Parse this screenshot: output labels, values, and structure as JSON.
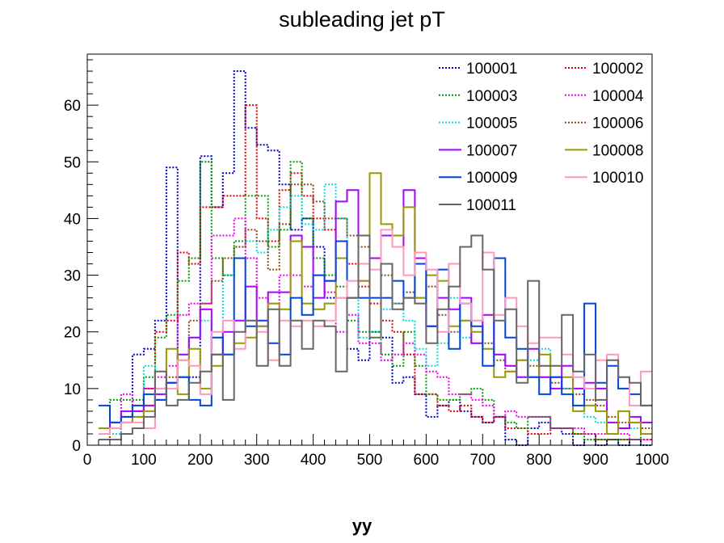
{
  "chart_data": {
    "type": "histogram",
    "title": "subleading jet pT",
    "xlabel": "yy",
    "ylabel": "",
    "xlim": [
      0,
      1000
    ],
    "ylim": [
      0,
      69
    ],
    "bin_width": 20,
    "x_start": 20,
    "xticks": [
      0,
      100,
      200,
      300,
      400,
      500,
      600,
      700,
      800,
      900,
      1000
    ],
    "yticks": [
      0,
      10,
      20,
      30,
      40,
      50,
      60
    ],
    "grid": false,
    "legend_placement": "top-right",
    "legend_columns": 2,
    "series": [
      {
        "name": "100001",
        "color": "#0000cc",
        "dash": true,
        "values": [
          1,
          1,
          5,
          16,
          17,
          22,
          49,
          12,
          12,
          51,
          42,
          48,
          66,
          56,
          53,
          52,
          46,
          38,
          40,
          35,
          26,
          26,
          17,
          15,
          20,
          19,
          11,
          12,
          9,
          5,
          7,
          8,
          6,
          5,
          4,
          5,
          1,
          0,
          3,
          4,
          3,
          2,
          0,
          1,
          0,
          1,
          0,
          1,
          0
        ]
      },
      {
        "name": "100002",
        "color": "#dd0000",
        "dash": true,
        "values": [
          1,
          2,
          4,
          6,
          10,
          20,
          22,
          34,
          32,
          42,
          42,
          44,
          44,
          60,
          40,
          36,
          45,
          48,
          44,
          40,
          38,
          36,
          32,
          28,
          25,
          22,
          20,
          16,
          9,
          9,
          7,
          6,
          7,
          5,
          4,
          5,
          3,
          3,
          2,
          2,
          3,
          3,
          2,
          2,
          1,
          1,
          1,
          1,
          1
        ]
      },
      {
        "name": "100003",
        "color": "#009900",
        "dash": true,
        "values": [
          2,
          8,
          8,
          8,
          12,
          19,
          23,
          29,
          33,
          50,
          33,
          30,
          36,
          44,
          44,
          35,
          38,
          50,
          40,
          33,
          30,
          28,
          22,
          20,
          20,
          16,
          14,
          20,
          14,
          9,
          8,
          8,
          9,
          10,
          8,
          5,
          4,
          3,
          5,
          5,
          3,
          3,
          2,
          1,
          1,
          1,
          1,
          1,
          2
        ]
      },
      {
        "name": "100004",
        "color": "#ee00ee",
        "dash": true,
        "values": [
          3,
          4,
          9,
          7,
          10,
          12,
          14,
          23,
          25,
          25,
          37,
          37,
          40,
          33,
          26,
          25,
          30,
          30,
          28,
          30,
          27,
          20,
          23,
          18,
          18,
          15,
          16,
          18,
          16,
          13,
          12,
          9,
          9,
          8,
          7,
          5,
          6,
          5,
          5,
          5,
          3,
          3,
          3,
          2,
          2,
          2,
          2,
          1,
          1
        ]
      },
      {
        "name": "100005",
        "color": "#00dddd",
        "dash": true,
        "values": [
          1,
          2,
          4,
          5,
          14,
          9,
          11,
          16,
          19,
          22,
          19,
          30,
          35,
          36,
          34,
          38,
          42,
          44,
          39,
          38,
          46,
          40,
          29,
          19,
          20,
          24,
          25,
          22,
          17,
          14,
          18,
          26,
          19,
          22,
          17,
          16,
          14,
          12,
          15,
          17,
          12,
          10,
          7,
          5,
          4,
          4,
          3,
          3,
          2
        ]
      },
      {
        "name": "100006",
        "color": "#8b4513",
        "dash": true,
        "values": [
          1,
          3,
          5,
          5,
          7,
          10,
          12,
          15,
          22,
          25,
          29,
          33,
          35,
          38,
          36,
          31,
          39,
          46,
          46,
          43,
          40,
          40,
          37,
          35,
          33,
          30,
          25,
          27,
          26,
          28,
          23,
          20,
          22,
          18,
          18,
          15,
          13,
          15,
          14,
          12,
          11,
          10,
          9,
          8,
          7,
          5,
          4,
          4,
          3
        ]
      },
      {
        "name": "100007",
        "color": "#aa00ff",
        "dash": false,
        "values": [
          3,
          4,
          6,
          6,
          7,
          9,
          11,
          16,
          19,
          24,
          16,
          20,
          22,
          28,
          21,
          27,
          27,
          37,
          35,
          26,
          29,
          43,
          45,
          29,
          33,
          37,
          35,
          45,
          33,
          21,
          26,
          24,
          26,
          18,
          23,
          16,
          14,
          12,
          17,
          12,
          10,
          14,
          10,
          11,
          10,
          4,
          3,
          5,
          4
        ]
      },
      {
        "name": "100008",
        "color": "#999900",
        "dash": false,
        "values": [
          3,
          3,
          4,
          5,
          6,
          8,
          17,
          9,
          17,
          10,
          14,
          16,
          18,
          19,
          21,
          25,
          24,
          36,
          25,
          24,
          25,
          33,
          26,
          29,
          48,
          39,
          37,
          42,
          26,
          30,
          29,
          21,
          22,
          20,
          17,
          12,
          13,
          15,
          12,
          16,
          12,
          12,
          6,
          7,
          6,
          2,
          6,
          4,
          2
        ]
      },
      {
        "name": "100009",
        "color": "#0044dd",
        "dash": false,
        "values": [
          7,
          4,
          5,
          7,
          9,
          8,
          11,
          12,
          8,
          7,
          19,
          16,
          33,
          21,
          22,
          18,
          16,
          26,
          23,
          30,
          29,
          36,
          26,
          26,
          26,
          26,
          29,
          26,
          32,
          21,
          31,
          17,
          25,
          21,
          14,
          33,
          19,
          17,
          12,
          9,
          12,
          9,
          7,
          25,
          11,
          14,
          10,
          9,
          7
        ]
      },
      {
        "name": "100010",
        "color": "#ff99bb",
        "dash": false,
        "values": [
          2,
          3,
          4,
          4,
          3,
          10,
          10,
          15,
          14,
          9,
          20,
          22,
          17,
          22,
          20,
          15,
          22,
          21,
          22,
          21,
          22,
          26,
          29,
          32,
          31,
          38,
          35,
          30,
          34,
          31,
          20,
          32,
          25,
          22,
          34,
          23,
          26,
          21,
          18,
          19,
          19,
          16,
          12,
          10,
          15,
          16,
          12,
          7,
          13
        ]
      },
      {
        "name": "100011",
        "color": "#666666",
        "dash": false,
        "values": [
          1,
          1,
          2,
          3,
          5,
          13,
          7,
          8,
          11,
          13,
          16,
          8,
          20,
          22,
          14,
          24,
          14,
          22,
          17,
          22,
          21,
          13,
          26,
          37,
          19,
          32,
          24,
          26,
          25,
          18,
          24,
          28,
          35,
          37,
          31,
          22,
          24,
          11,
          29,
          14,
          14,
          23,
          13,
          16,
          8,
          15,
          12,
          11,
          7
        ]
      }
    ]
  }
}
